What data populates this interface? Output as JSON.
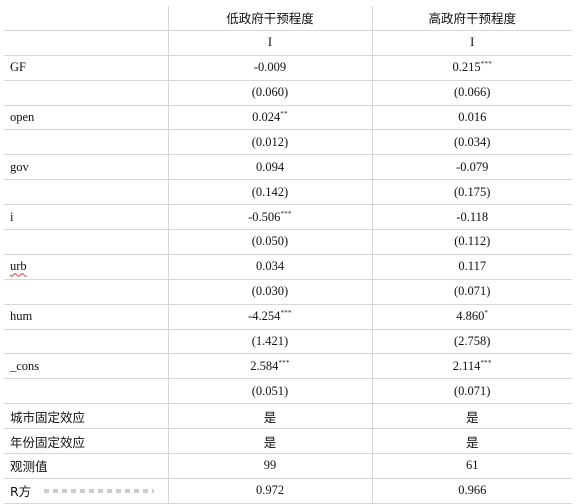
{
  "table": {
    "header": [
      "",
      "低政府干预程度",
      "高政府干预程度"
    ],
    "model_row": [
      "",
      "I",
      "I"
    ],
    "rows": [
      {
        "name": "GF",
        "c1": "-0.009",
        "c1_stars": "",
        "c2": "0.215",
        "c2_stars": "***"
      },
      {
        "name": "",
        "c1": "(0.060)",
        "c1_stars": "",
        "c2": "(0.066)",
        "c2_stars": ""
      },
      {
        "name": "open",
        "c1": "0.024",
        "c1_stars": "**",
        "c2": "0.016",
        "c2_stars": ""
      },
      {
        "name": "",
        "c1": "(0.012)",
        "c1_stars": "",
        "c2": "(0.034)",
        "c2_stars": ""
      },
      {
        "name": "gov",
        "c1": "0.094",
        "c1_stars": "",
        "c2": "-0.079",
        "c2_stars": ""
      },
      {
        "name": "",
        "c1": "(0.142)",
        "c1_stars": "",
        "c2": "(0.175)",
        "c2_stars": ""
      },
      {
        "name": "i",
        "c1": "-0.506",
        "c1_stars": "***",
        "c2": "-0.118",
        "c2_stars": ""
      },
      {
        "name": "",
        "c1": "(0.050)",
        "c1_stars": "",
        "c2": "(0.112)",
        "c2_stars": ""
      },
      {
        "name": "urb",
        "c1": "0.034",
        "c1_stars": "",
        "c2": "0.117",
        "c2_stars": ""
      },
      {
        "name": "",
        "c1": "(0.030)",
        "c1_stars": "",
        "c2": "(0.071)",
        "c2_stars": ""
      },
      {
        "name": "hum",
        "c1": "-4.254",
        "c1_stars": "***",
        "c2": "4.860",
        "c2_stars": "*"
      },
      {
        "name": "",
        "c1": "(1.421)",
        "c1_stars": "",
        "c2": "(2.758)",
        "c2_stars": ""
      },
      {
        "name": "_cons",
        "c1": "2.584",
        "c1_stars": "***",
        "c2": "2.114",
        "c2_stars": "***"
      },
      {
        "name": "",
        "c1": "(0.051)",
        "c1_stars": "",
        "c2": "(0.071)",
        "c2_stars": ""
      },
      {
        "name": "城市固定效应",
        "c1": "是",
        "c1_stars": "",
        "c2": "是",
        "c2_stars": ""
      },
      {
        "name": "年份固定效应",
        "c1": "是",
        "c1_stars": "",
        "c2": "是",
        "c2_stars": ""
      },
      {
        "name": "观测值",
        "c1": "99",
        "c1_stars": "",
        "c2": "61",
        "c2_stars": ""
      },
      {
        "name": "R方",
        "c1": "0.972",
        "c1_stars": "",
        "c2": "0.966",
        "c2_stars": ""
      }
    ]
  }
}
